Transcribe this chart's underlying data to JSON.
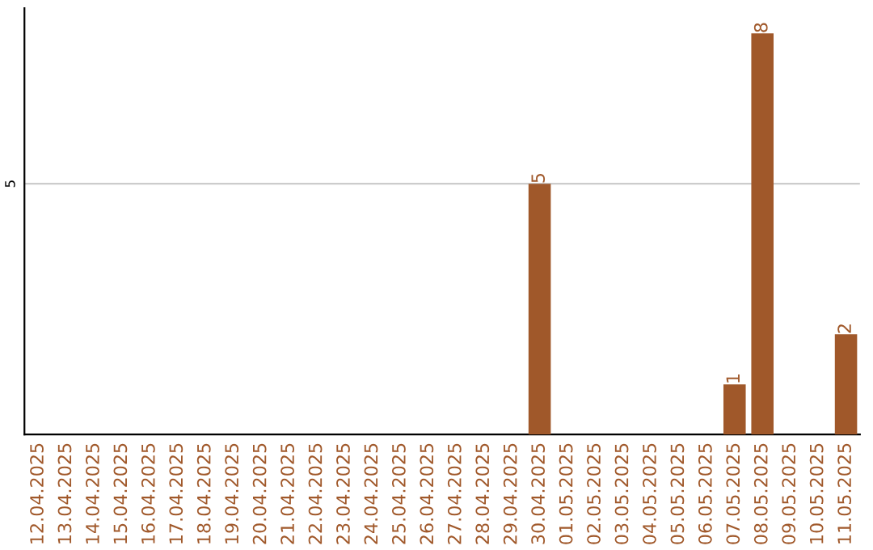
{
  "chart_data": {
    "type": "bar",
    "categories": [
      "12.04.2025",
      "13.04.2025",
      "14.04.2025",
      "15.04.2025",
      "16.04.2025",
      "17.04.2025",
      "18.04.2025",
      "19.04.2025",
      "20.04.2025",
      "21.04.2025",
      "22.04.2025",
      "23.04.2025",
      "24.04.2025",
      "25.04.2025",
      "26.04.2025",
      "27.04.2025",
      "28.04.2025",
      "29.04.2025",
      "30.04.2025",
      "01.05.2025",
      "02.05.2025",
      "03.05.2025",
      "04.05.2025",
      "05.05.2025",
      "06.05.2025",
      "07.05.2025",
      "08.05.2025",
      "09.05.2025",
      "10.05.2025",
      "11.05.2025"
    ],
    "values": [
      null,
      null,
      null,
      null,
      null,
      null,
      null,
      null,
      null,
      null,
      null,
      null,
      null,
      null,
      null,
      null,
      null,
      null,
      5,
      null,
      null,
      null,
      null,
      null,
      null,
      1,
      8,
      null,
      null,
      2
    ],
    "value_labels": [
      null,
      null,
      null,
      null,
      null,
      null,
      null,
      null,
      null,
      null,
      null,
      null,
      null,
      null,
      null,
      null,
      null,
      null,
      "5",
      null,
      null,
      null,
      null,
      null,
      null,
      "1",
      "8",
      null,
      null,
      "2"
    ],
    "ylim": [
      0,
      8.5
    ],
    "yticks": [
      5
    ],
    "grid": "y",
    "color": "#a0582a"
  }
}
